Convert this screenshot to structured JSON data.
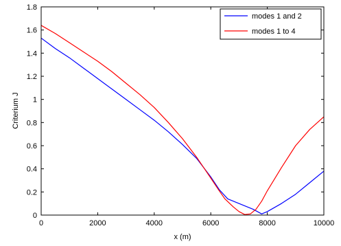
{
  "chart_data": {
    "type": "line",
    "xlabel": "x (m)",
    "ylabel": "Criterium J",
    "xlim": [
      0,
      10000
    ],
    "ylim": [
      0,
      1.8
    ],
    "xticks": [
      0,
      2000,
      4000,
      6000,
      8000,
      10000
    ],
    "yticks": [
      0,
      0.2,
      0.4,
      0.6,
      0.8,
      1,
      1.2,
      1.4,
      1.6,
      1.8
    ],
    "grid": false,
    "legend_position": "top-right",
    "series": [
      {
        "name": "modes 1 and 2",
        "color": "#0000ff",
        "x": [
          0,
          500,
          1000,
          1500,
          2000,
          2500,
          3000,
          3500,
          4000,
          4500,
          5000,
          5500,
          6000,
          6300,
          6600,
          7000,
          7500,
          7800,
          8000,
          8500,
          9000,
          9500,
          10000
        ],
        "y": [
          1.53,
          1.44,
          1.36,
          1.27,
          1.18,
          1.09,
          1.0,
          0.91,
          0.82,
          0.72,
          0.61,
          0.49,
          0.33,
          0.22,
          0.14,
          0.1,
          0.05,
          0.01,
          0.03,
          0.1,
          0.18,
          0.28,
          0.38
        ]
      },
      {
        "name": "modes 1 to 4",
        "color": "#ff0000",
        "x": [
          0,
          500,
          1000,
          1500,
          2000,
          2500,
          3000,
          3500,
          4000,
          4500,
          5000,
          5500,
          6000,
          6300,
          6500,
          6800,
          7000,
          7200,
          7400,
          7600,
          7800,
          8000,
          8500,
          9000,
          9500,
          10000
        ],
        "y": [
          1.64,
          1.57,
          1.49,
          1.41,
          1.33,
          1.24,
          1.14,
          1.04,
          0.93,
          0.8,
          0.66,
          0.5,
          0.32,
          0.21,
          0.14,
          0.07,
          0.03,
          0.005,
          0.01,
          0.05,
          0.12,
          0.21,
          0.41,
          0.6,
          0.74,
          0.85
        ]
      }
    ]
  }
}
